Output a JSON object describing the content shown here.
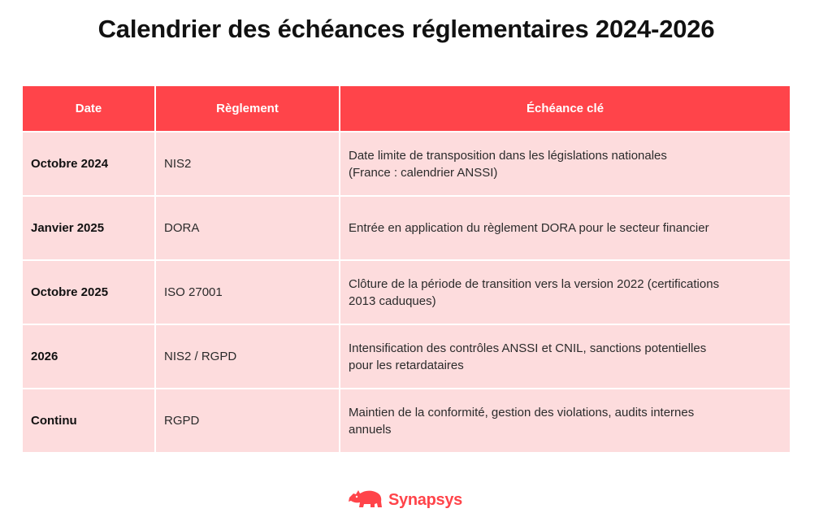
{
  "title": "Calendrier des échéances réglementaires 2024-2026",
  "table": {
    "headers": [
      "Date",
      "Règlement",
      "Échéance clé"
    ],
    "rows": [
      {
        "date": "Octobre 2024",
        "reglement": "NIS2",
        "echeance_lines": [
          "Date limite de transposition dans les législations nationales",
          "(France : calendrier ANSSI)"
        ]
      },
      {
        "date": "Janvier 2025",
        "reglement": "DORA",
        "echeance_lines": [
          "Entrée en application du règlement DORA pour le secteur financier"
        ]
      },
      {
        "date": "Octobre 2025",
        "reglement": "ISO 27001",
        "echeance_lines": [
          "Clôture de la période de transition vers la version 2022 (certifications",
          "2013 caduques)"
        ]
      },
      {
        "date": "2026",
        "reglement": "NIS2 / RGPD",
        "echeance_lines": [
          "Intensification des contrôles ANSSI et CNIL, sanctions potentielles",
          "pour les retardataires"
        ]
      },
      {
        "date": "Continu",
        "reglement": "RGPD",
        "echeance_lines": [
          "Maintien de la conformité, gestion des violations, audits internes",
          "annuels"
        ]
      }
    ]
  },
  "logo": {
    "text": "Synapsys",
    "icon": "rhino-icon"
  },
  "colors": {
    "accent": "#ff444a",
    "row_bg": "#fddcdd"
  }
}
